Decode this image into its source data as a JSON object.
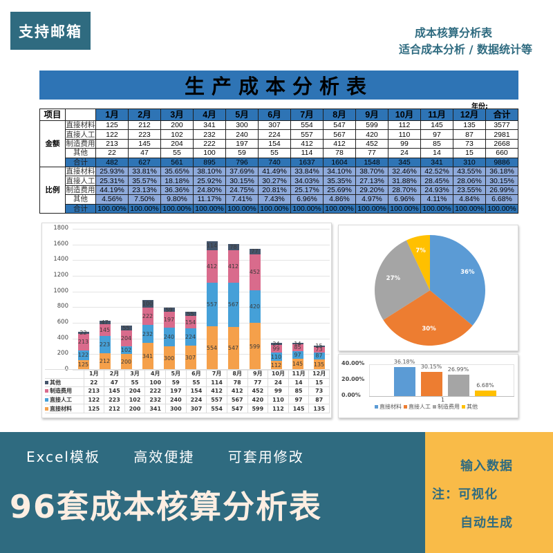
{
  "banner": {
    "badge": "支持邮箱",
    "tagline_line1": "成本核算分析表",
    "tagline_line2": "适合成本分析 / 数据统计等"
  },
  "sheet": {
    "title": "生产成本分析表",
    "year_label": "年份:",
    "header_item": "项目",
    "months": [
      "1月",
      "2月",
      "3月",
      "4月",
      "5月",
      "6月",
      "7月",
      "8月",
      "9月",
      "10月",
      "11月",
      "12月"
    ],
    "total_header": "合计",
    "amount_group": "金额",
    "ratio_group": "比例",
    "amount_rows": [
      {
        "label": "直接材料",
        "values": [
          "125",
          "212",
          "200",
          "341",
          "300",
          "307",
          "554",
          "547",
          "599",
          "112",
          "145",
          "135"
        ],
        "total": "3577"
      },
      {
        "label": "直接人工",
        "values": [
          "122",
          "223",
          "102",
          "232",
          "240",
          "224",
          "557",
          "567",
          "420",
          "110",
          "97",
          "87"
        ],
        "total": "2981"
      },
      {
        "label": "制造费用",
        "values": [
          "213",
          "145",
          "204",
          "222",
          "197",
          "154",
          "412",
          "412",
          "452",
          "99",
          "85",
          "73"
        ],
        "total": "2668"
      },
      {
        "label": "其他",
        "values": [
          "22",
          "47",
          "55",
          "100",
          "59",
          "55",
          "114",
          "78",
          "77",
          "24",
          "14",
          "15"
        ],
        "total": "660"
      },
      {
        "label": "合计",
        "values": [
          "482",
          "627",
          "561",
          "895",
          "796",
          "740",
          "1637",
          "1604",
          "1548",
          "345",
          "341",
          "310"
        ],
        "total": "9886"
      }
    ],
    "ratio_rows": [
      {
        "label": "直接材料",
        "values": [
          "25.93%",
          "33.81%",
          "35.65%",
          "38.10%",
          "37.69%",
          "41.49%",
          "33.84%",
          "34.10%",
          "38.70%",
          "32.46%",
          "42.52%",
          "43.55%"
        ],
        "total": "36.18%"
      },
      {
        "label": "直接人工",
        "values": [
          "25.31%",
          "35.57%",
          "18.18%",
          "25.92%",
          "30.15%",
          "30.27%",
          "34.03%",
          "35.35%",
          "27.13%",
          "31.88%",
          "28.45%",
          "28.06%"
        ],
        "total": "30.15%"
      },
      {
        "label": "制造费用",
        "values": [
          "44.19%",
          "23.13%",
          "36.36%",
          "24.80%",
          "24.75%",
          "20.81%",
          "25.17%",
          "25.69%",
          "29.20%",
          "28.70%",
          "24.93%",
          "23.55%"
        ],
        "total": "26.99%"
      },
      {
        "label": "其他",
        "values": [
          "4.56%",
          "7.50%",
          "9.80%",
          "11.17%",
          "7.41%",
          "7.43%",
          "6.96%",
          "4.86%",
          "4.97%",
          "6.96%",
          "4.11%",
          "4.84%"
        ],
        "total": "6.68%"
      },
      {
        "label": "合计",
        "values": [
          "100.00%",
          "100.00%",
          "100.00%",
          "100.00%",
          "100.00%",
          "100.00%",
          "100.00%",
          "100.00%",
          "100.00%",
          "100.00%",
          "100.00%",
          "100.00%"
        ],
        "total": "100.00%"
      }
    ]
  },
  "colors": {
    "material": "#f5a04a",
    "labor": "#45a0d8",
    "manufacturing": "#d96b8c",
    "other": "#44546a",
    "pie_material": "#5b9bd5",
    "pie_labor": "#ed7d31",
    "pie_manufacturing": "#a5a5a5",
    "pie_other": "#ffc000",
    "brand_teal": "#2f6b80",
    "brand_orange": "#f9bb48",
    "sheet_blue": "#2e74b5"
  },
  "chart_data": [
    {
      "type": "bar",
      "stacked": true,
      "title": "",
      "categories": [
        "1月",
        "2月",
        "3月",
        "4月",
        "5月",
        "6月",
        "7月",
        "8月",
        "9月",
        "10月",
        "11月",
        "12月"
      ],
      "series": [
        {
          "name": "直接材料",
          "values": [
            125,
            212,
            200,
            341,
            300,
            307,
            554,
            547,
            599,
            112,
            145,
            135
          ]
        },
        {
          "name": "直接人工",
          "values": [
            122,
            223,
            102,
            232,
            240,
            224,
            557,
            567,
            420,
            110,
            97,
            87
          ]
        },
        {
          "name": "制造费用",
          "values": [
            213,
            145,
            204,
            222,
            197,
            154,
            412,
            412,
            452,
            99,
            85,
            73
          ]
        },
        {
          "name": "其他",
          "values": [
            22,
            47,
            55,
            100,
            59,
            55,
            114,
            78,
            77,
            24,
            14,
            15
          ]
        }
      ],
      "yticks": [
        "0",
        "200",
        "400",
        "600",
        "800",
        "1000",
        "1200",
        "1400",
        "1600",
        "1800"
      ],
      "ylim": [
        0,
        1800
      ],
      "grid": true,
      "legend_position": "data-table-below",
      "table_order": [
        "其他",
        "制造费用",
        "直接人工",
        "直接材料"
      ]
    },
    {
      "type": "pie",
      "title": "",
      "labels": [
        "直接材料",
        "直接人工",
        "制造费用",
        "其他"
      ],
      "values": [
        36,
        30,
        27,
        7
      ],
      "display_labels": [
        "36%",
        "30%",
        "27%",
        "7%"
      ]
    },
    {
      "type": "bar",
      "title": "",
      "categories": [
        "1"
      ],
      "series": [
        {
          "name": "直接材料",
          "values": [
            36.18
          ]
        },
        {
          "name": "直接人工",
          "values": [
            30.15
          ]
        },
        {
          "name": "制造费用",
          "values": [
            26.99
          ]
        },
        {
          "name": "其他",
          "values": [
            6.68
          ]
        }
      ],
      "data_labels": [
        "36.18%",
        "30.15%",
        "26.99%",
        "6.68%"
      ],
      "yticks": [
        "0.00%",
        "20.00%",
        "40.00%"
      ],
      "ylim": [
        0,
        40
      ],
      "category_tick": "1",
      "legend_position": "bottom"
    }
  ],
  "promo": {
    "features": [
      "Excel模板",
      "高效便捷",
      "可套用修改"
    ],
    "headline": "96套成本核算分析表",
    "side_line1": "输入数据",
    "side_line2": "注：可视化",
    "side_line3": "自动生成"
  }
}
